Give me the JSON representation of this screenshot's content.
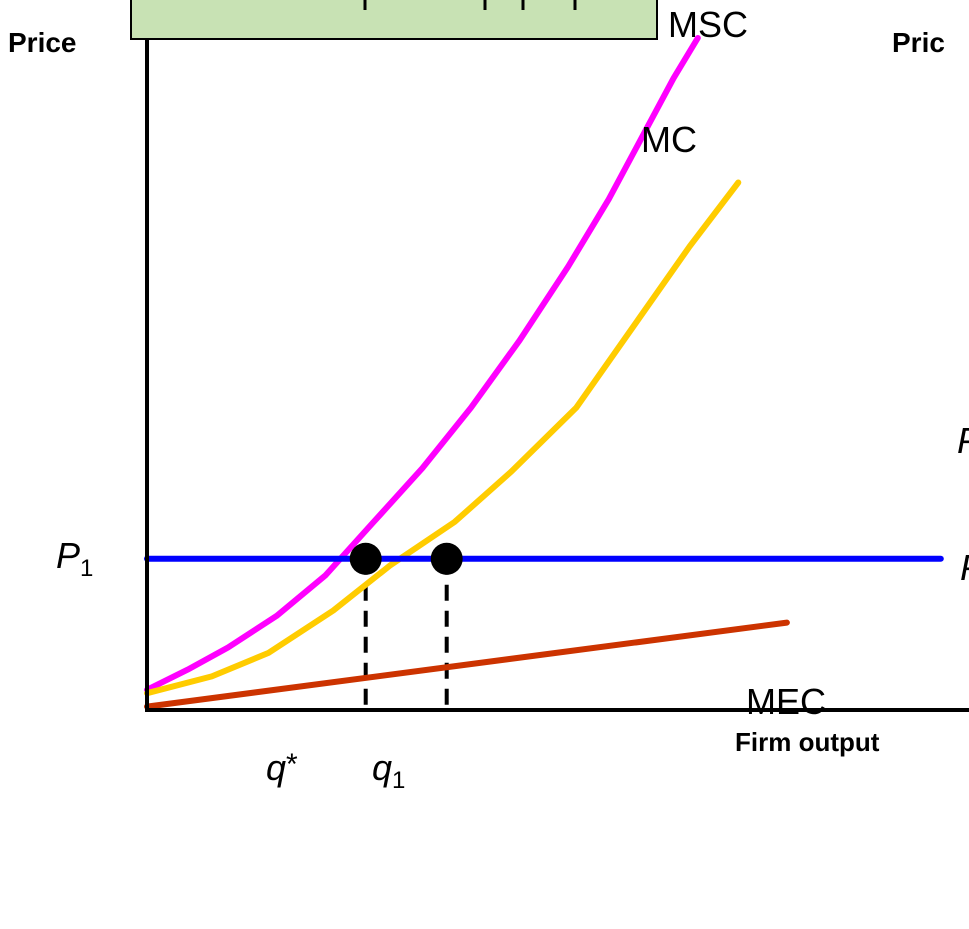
{
  "chart_data": {
    "type": "line",
    "title": "",
    "ylabel": "Price",
    "xlabel": "Firm output",
    "right_panel_ylabel": "Pric",
    "right_panel_fragments": [
      "P",
      "P"
    ],
    "price_label": {
      "base": "P",
      "sub": "1"
    },
    "xlim": [
      0,
      10
    ],
    "ylim": [
      0,
      10
    ],
    "p1": 2.25,
    "series": [
      {
        "name": "MSC",
        "color": "#ff00ff",
        "x": [
          0,
          0.5,
          1.0,
          1.6,
          2.2,
          2.8,
          3.4,
          4.0,
          4.6,
          5.2,
          5.7,
          6.1,
          6.5,
          6.8
        ],
        "y": [
          0.3,
          0.6,
          0.93,
          1.4,
          2.0,
          2.8,
          3.6,
          4.5,
          5.5,
          6.6,
          7.6,
          8.5,
          9.4,
          10.0
        ]
      },
      {
        "name": "MC",
        "color": "#ffcc00",
        "x": [
          0,
          0.8,
          1.5,
          2.3,
          3.0,
          3.8,
          4.5,
          5.3,
          6.0,
          6.7,
          7.3
        ],
        "y": [
          0.25,
          0.5,
          0.85,
          1.48,
          2.15,
          2.8,
          3.55,
          4.5,
          5.7,
          6.9,
          7.85
        ]
      },
      {
        "name": "MEC",
        "color": "#cc3300",
        "x": [
          0,
          7.9
        ],
        "y": [
          0.05,
          1.3
        ]
      },
      {
        "name": "P1",
        "color": "#0000ff",
        "x": [
          0,
          9.8
        ],
        "y": [
          2.25,
          2.25
        ]
      }
    ],
    "points": [
      {
        "label": "q*",
        "base": "q",
        "sup": "*",
        "sub": "",
        "x": 2.7,
        "y": 2.25
      },
      {
        "label": "q1",
        "base": "q",
        "sup": "",
        "sub": "1",
        "x": 3.7,
        "y": 2.25
      }
    ]
  }
}
